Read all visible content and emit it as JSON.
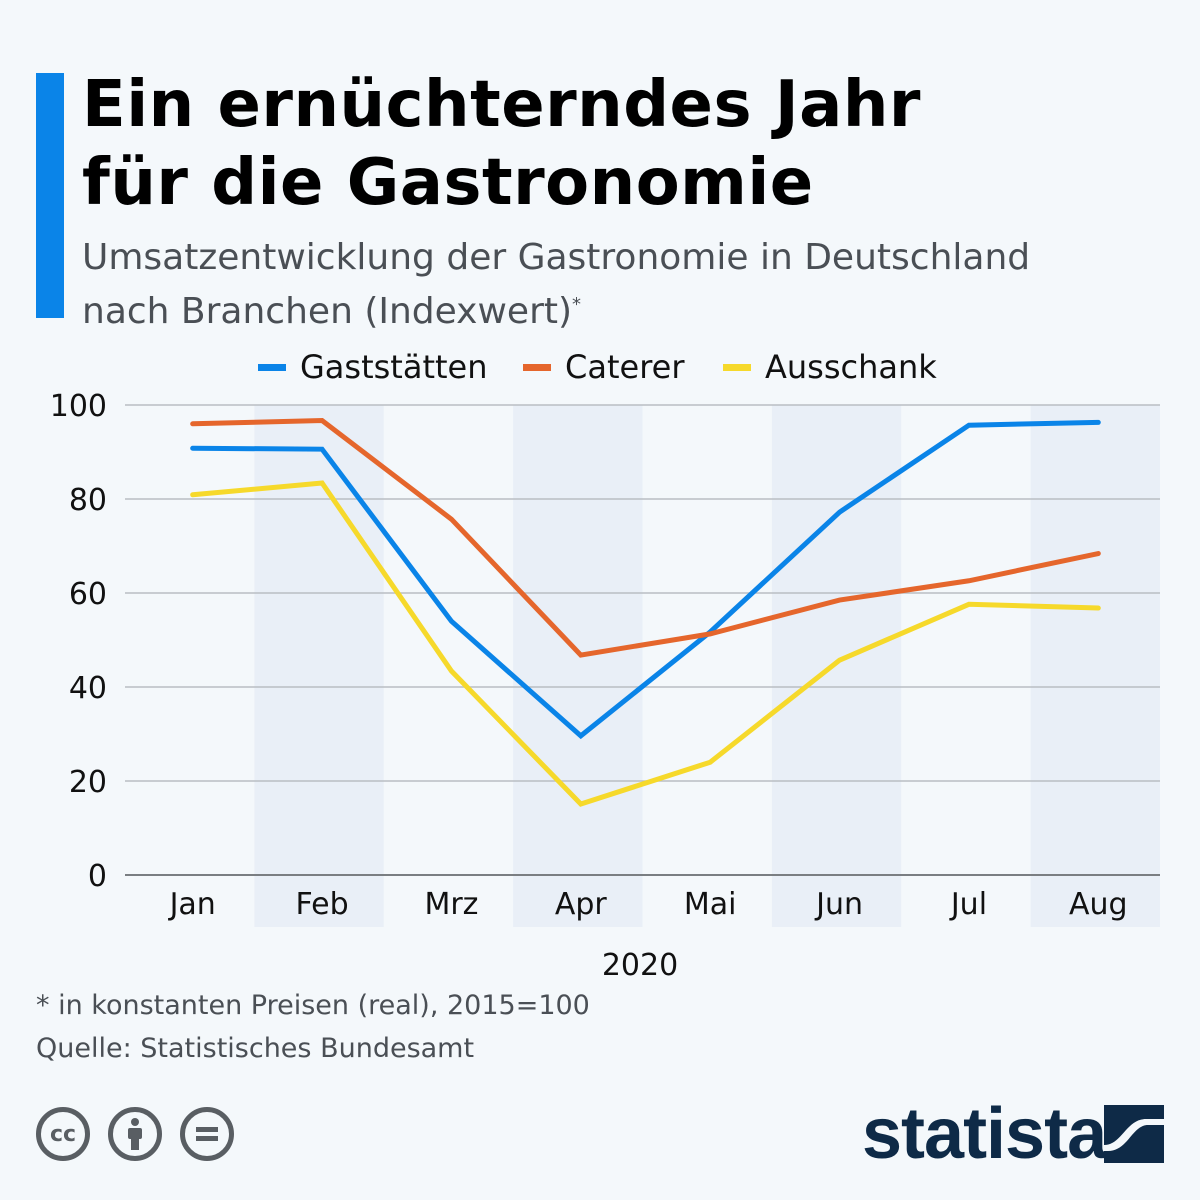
{
  "title_line1": "Ein ernüchterndes Jahr",
  "title_line2": "für die Gastronomie",
  "subtitle_line1": "Umsatzentwicklung der Gastronomie in Deutschland",
  "subtitle_line2": "nach Branchen (Indexwert)",
  "subtitle_mark": "*",
  "footnote": "* in konstanten Preisen (real), 2015=100",
  "source": "Quelle: Statistisches Bundesamt",
  "brand": "statista",
  "icons": [
    "cc-icon",
    "attribution-icon",
    "no-derivatives-icon",
    "statista-logo-icon"
  ],
  "colors": {
    "accent": "#0a84e8",
    "Gaststätten": "#0a84e8",
    "Caterer": "#e5662c",
    "Ausschank": "#f6d92b"
  },
  "chart_data": {
    "type": "line",
    "x": [
      "Jan",
      "Feb",
      "Mrz",
      "Apr",
      "Mai",
      "Jun",
      "Jul",
      "Aug"
    ],
    "xlabel": "2020",
    "ylabel": "",
    "ylim": [
      0,
      100
    ],
    "yticks": [
      0,
      20,
      40,
      60,
      80,
      100
    ],
    "grid": true,
    "legend": "top",
    "series": [
      {
        "name": "Gaststätten",
        "color": "#0a84e8",
        "values": [
          90.8,
          90.6,
          54.0,
          29.6,
          51.7,
          77.2,
          95.7,
          96.3
        ]
      },
      {
        "name": "Caterer",
        "color": "#e5662c",
        "values": [
          96.0,
          96.7,
          75.7,
          46.8,
          51.3,
          58.5,
          62.6,
          68.4
        ]
      },
      {
        "name": "Ausschank",
        "color": "#f6d92b",
        "values": [
          80.9,
          83.4,
          43.4,
          15.1,
          24.0,
          45.7,
          57.6,
          56.8
        ]
      }
    ]
  }
}
